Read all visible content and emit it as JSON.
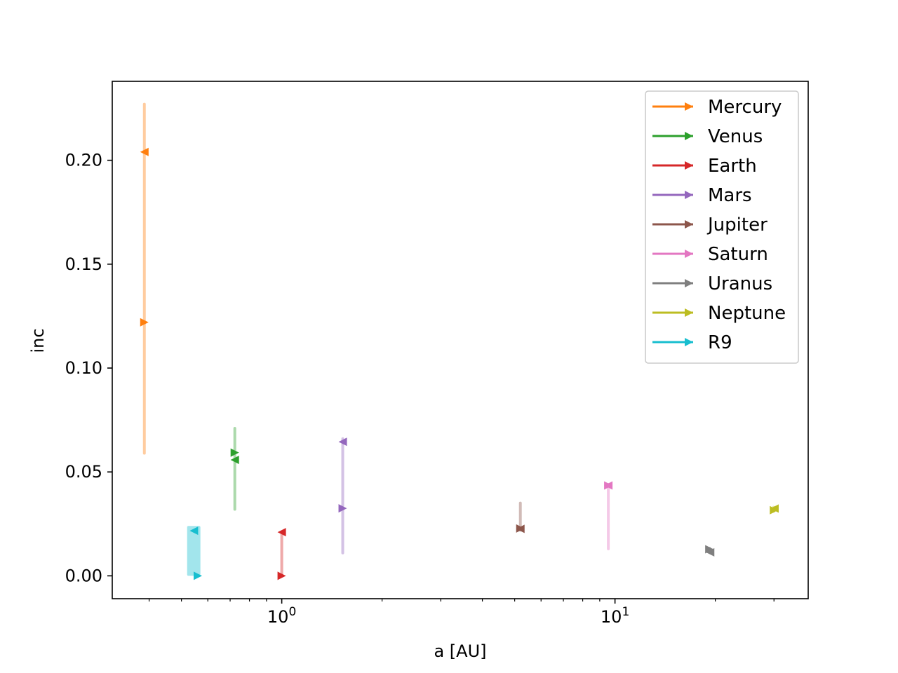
{
  "chart_data": {
    "type": "line",
    "xlabel": "a [AU]",
    "ylabel": "inc",
    "xscale": "log",
    "xlim": [
      0.31,
      38
    ],
    "ylim": [
      -0.011,
      0.238
    ],
    "grid": false,
    "legend_placement": "top-right",
    "y_ticks": [
      {
        "value": 0.0,
        "label": "0.00"
      },
      {
        "value": 0.05,
        "label": "0.05"
      },
      {
        "value": 0.1,
        "label": "0.10"
      },
      {
        "value": 0.15,
        "label": "0.15"
      },
      {
        "value": 0.2,
        "label": "0.20"
      }
    ],
    "x_ticks": [
      {
        "value": 1,
        "base": "10",
        "exponent": "0"
      },
      {
        "value": 10,
        "base": "10",
        "exponent": "1"
      }
    ],
    "x_minor_ticks": [
      0.4,
      0.5,
      0.6,
      0.7,
      0.8,
      0.9,
      2,
      3,
      4,
      5,
      6,
      7,
      8,
      9,
      20,
      30
    ],
    "series": [
      {
        "name": "Mercury",
        "color": "#ff7f0e",
        "a_range": [
          0.387,
          0.387
        ],
        "inc_range": [
          0.059,
          0.227
        ],
        "start": {
          "a": 0.387,
          "inc": 0.122
        },
        "end": {
          "a": 0.387,
          "inc": 0.204
        }
      },
      {
        "name": "Venus",
        "color": "#2ca02c",
        "a_range": [
          0.723,
          0.723
        ],
        "inc_range": [
          0.032,
          0.071
        ],
        "start": {
          "a": 0.723,
          "inc": 0.0593
        },
        "end": {
          "a": 0.723,
          "inc": 0.0558
        }
      },
      {
        "name": "Earth",
        "color": "#d62728",
        "a_range": [
          1.0,
          1.0
        ],
        "inc_range": [
          0.0,
          0.02
        ],
        "start": {
          "a": 1.0,
          "inc": 0.0
        },
        "end": {
          "a": 1.0,
          "inc": 0.021
        }
      },
      {
        "name": "Mars",
        "color": "#9467bd",
        "a_range": [
          1.524,
          1.524
        ],
        "inc_range": [
          0.011,
          0.066
        ],
        "start": {
          "a": 1.524,
          "inc": 0.0325
        },
        "end": {
          "a": 1.524,
          "inc": 0.0645
        }
      },
      {
        "name": "Jupiter",
        "color": "#8c564b",
        "a_range": [
          5.2,
          5.2
        ],
        "inc_range": [
          0.022,
          0.035
        ],
        "start": {
          "a": 5.2,
          "inc": 0.0228
        },
        "end": {
          "a": 5.2,
          "inc": 0.0226
        }
      },
      {
        "name": "Saturn",
        "color": "#e377c2",
        "a_range": [
          9.55,
          9.55
        ],
        "inc_range": [
          0.013,
          0.044
        ],
        "start": {
          "a": 9.55,
          "inc": 0.0435
        },
        "end": {
          "a": 9.55,
          "inc": 0.0435
        }
      },
      {
        "name": "Uranus",
        "color": "#7f7f7f",
        "a_range": [
          19.1,
          19.4
        ],
        "inc_range": [
          0.011,
          0.014
        ],
        "start": {
          "a": 19.2,
          "inc": 0.0128
        },
        "end": {
          "a": 19.3,
          "inc": 0.0113
        }
      },
      {
        "name": "Neptune",
        "color": "#bcbd22",
        "a_range": [
          29.9,
          30.2
        ],
        "inc_range": [
          0.031,
          0.033
        ],
        "start": {
          "a": 30.0,
          "inc": 0.0316
        },
        "end": {
          "a": 30.1,
          "inc": 0.0324
        }
      },
      {
        "name": "R9",
        "color": "#17becf",
        "a_range": [
          0.52,
          0.57
        ],
        "inc_range": [
          0.0,
          0.024
        ],
        "start": {
          "a": 0.56,
          "inc": 0.0
        },
        "end": {
          "a": 0.545,
          "inc": 0.0217
        }
      }
    ]
  }
}
